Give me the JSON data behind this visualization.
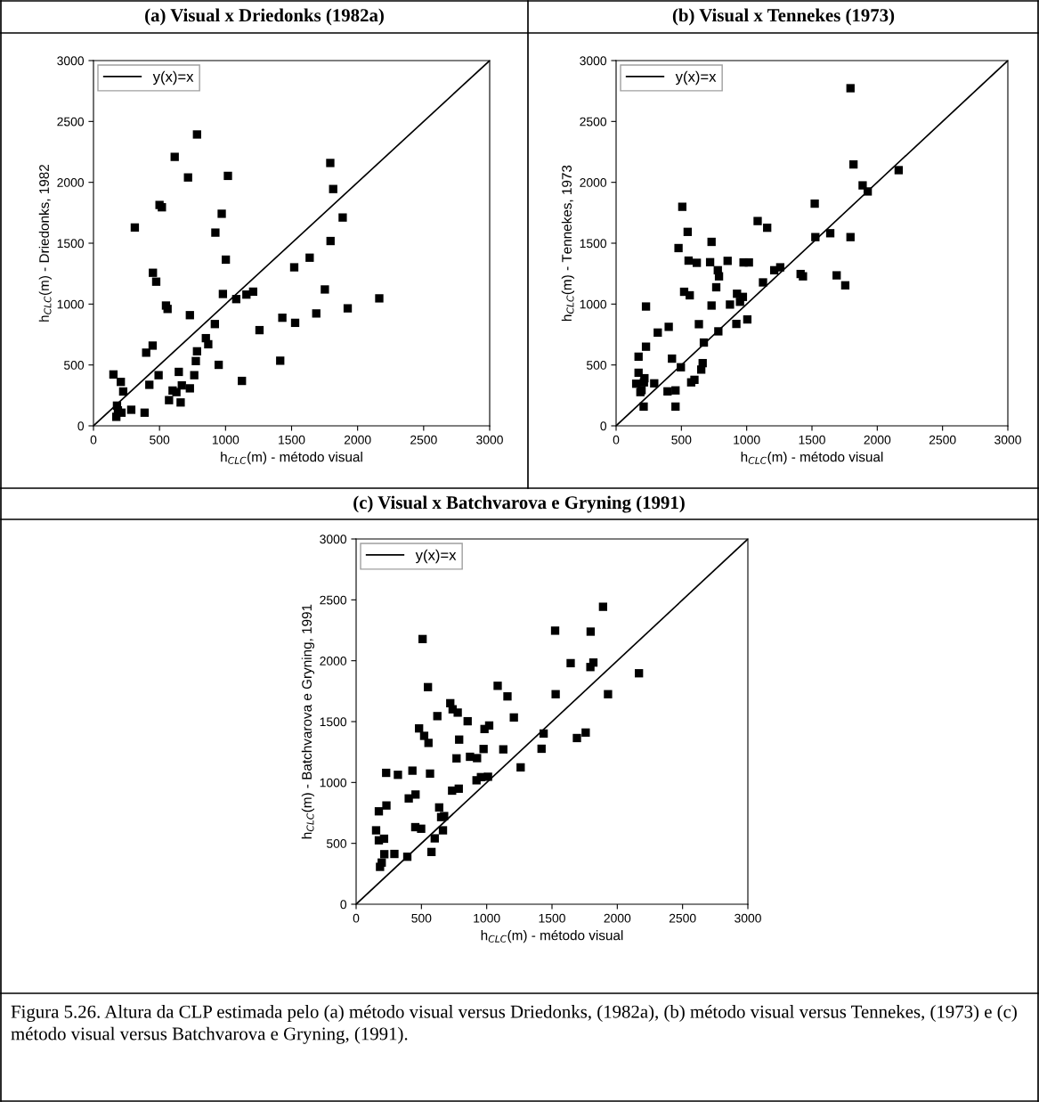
{
  "chart_data": [
    {
      "type": "scatter",
      "title": "(a) Visual x Driedonks (1982a)",
      "xlabel": "h$_{CLC}$(m) - método visual",
      "ylabel": "h$_{CLC}$(m) - Driedonks, 1982",
      "xlim": [
        0,
        3000
      ],
      "ylim": [
        0,
        3000
      ],
      "xticks": [
        0,
        500,
        1000,
        1500,
        2000,
        2500,
        3000
      ],
      "yticks": [
        0,
        500,
        1000,
        1500,
        2000,
        2500,
        3000
      ],
      "grid": false,
      "legend": "top left",
      "series": [
        {
          "name": "y(x)=x",
          "type": "line",
          "color": "#000000",
          "marker": "none",
          "line_style": "solid",
          "x": [
            0,
            3000
          ],
          "values": [
            0,
            3000
          ]
        },
        {
          "color": "#000000",
          "marker": "square",
          "x": [
            151,
            207,
            225,
            178,
            185,
            212,
            173,
            286,
            387,
            313,
            399,
            448,
            423,
            493,
            450,
            475,
            500,
            518,
            549,
            561,
            572,
            599,
            628,
            646,
            660,
            669,
            615,
            716,
            730,
            730,
            763,
            775,
            784,
            784,
            851,
            869,
            919,
            923,
            948,
            971,
            980,
            1002,
            1018,
            1081,
            1124,
            1158,
            1209,
            1257,
            1414,
            1430,
            1520,
            1527,
            1637,
            1687,
            1752,
            1793,
            1795,
            1815,
            1887,
            1925,
            2164
          ],
          "values": [
            422,
            361,
            282,
            166,
            127,
            108,
            74,
            132,
            108,
            1629,
            601,
            659,
            337,
            416,
            1257,
            1184,
            1814,
            1795,
            988,
            960,
            211,
            290,
            277,
            443,
            192,
            332,
            2209,
            2040,
            909,
            308,
            416,
            532,
            612,
            2393,
            720,
            670,
            836,
            1587,
            501,
            1742,
            1083,
            1365,
            2053,
            1041,
            369,
            1078,
            1102,
            786,
            535,
            888,
            1302,
            846,
            1381,
            923,
            1120,
            2159,
            1518,
            1945,
            1711,
            965,
            1047
          ]
        }
      ]
    },
    {
      "type": "scatter",
      "title": "(b) Visual x Tennekes (1973)",
      "xlabel": "h$_{CLC}$(m) - método visual",
      "ylabel": "h$_{CLC}$(m) - Tennekes, 1973",
      "xlim": [
        0,
        3000
      ],
      "ylim": [
        0,
        3000
      ],
      "xticks": [
        0,
        500,
        1000,
        1500,
        2000,
        2500,
        3000
      ],
      "yticks": [
        0,
        500,
        1000,
        1500,
        2000,
        2500,
        3000
      ],
      "grid": false,
      "legend": "top left",
      "series": [
        {
          "name": "y(x)=x",
          "type": "line",
          "color": "#000000",
          "marker": "none",
          "line_style": "solid",
          "x": [
            0,
            3000
          ],
          "values": [
            0,
            3000
          ]
        },
        {
          "color": "#000000",
          "marker": "square",
          "x": [
            1795,
            1818,
            2164,
            1888,
            1927,
            1521,
            1526,
            1640,
            1795,
            1689,
            1755,
            1413,
            1431,
            1084,
            1157,
            1211,
            1257,
            1125,
            976,
            1017,
            854,
            720,
            731,
            779,
            788,
            767,
            555,
            618,
            478,
            507,
            548,
            521,
            564,
            731,
            872,
            926,
            971,
            949,
            921,
            1005,
            783,
            672,
            634,
            663,
            652,
            600,
            575,
            496,
            428,
            455,
            455,
            394,
            403,
            319,
            292,
            229,
            229,
            172,
            172,
            154,
            217,
            213,
            186,
            195,
            211
          ],
          "values": [
            2773,
            2147,
            2100,
            1975,
            1925,
            1825,
            1550,
            1582,
            1550,
            1236,
            1154,
            1247,
            1228,
            1682,
            1627,
            1278,
            1302,
            1178,
            1342,
            1342,
            1355,
            1344,
            1511,
            1278,
            1228,
            1138,
            1357,
            1339,
            1460,
            1799,
            1593,
            1101,
            1072,
            988,
            996,
            1085,
            1059,
            1019,
            837,
            874,
            776,
            684,
            835,
            515,
            462,
            378,
            357,
            481,
            552,
            291,
            158,
            283,
            813,
            766,
            349,
            980,
            650,
            568,
            436,
            346,
            391,
            357,
            277,
            293,
            158
          ]
        }
      ]
    },
    {
      "type": "scatter",
      "title": "(c) Visual x Batchvarova e Gryning (1991)",
      "xlabel": "h$_{CLC}$(m) - método visual",
      "ylabel": "h$_{CLC}$(m) - Batchvarova e Gryning, 1991",
      "xlim": [
        0,
        3000
      ],
      "ylim": [
        0,
        3000
      ],
      "xticks": [
        0,
        500,
        1000,
        1500,
        2000,
        2500,
        3000
      ],
      "yticks": [
        0,
        500,
        1000,
        1500,
        2000,
        2500,
        3000
      ],
      "grid": false,
      "legend": "top left",
      "annotations": [
        "Figura 5.26. Altura da CLP estimada pelo (a) método visual versus Driedonks, (1982a), (b) método visual versus Tennekes, (1973) e (c) método visual versus Batchvarova e Gryning, (1991)."
      ],
      "series": [
        {
          "name": "y(x)=x",
          "type": "line",
          "color": "#000000",
          "marker": "none",
          "line_style": "solid",
          "x": [
            0,
            3000
          ],
          "values": [
            0,
            3000
          ]
        },
        {
          "color": "#000000",
          "marker": "square",
          "x": [
            1891,
            1524,
            1796,
            509,
            1643,
            1817,
            1794,
            2166,
            550,
            1084,
            1159,
            1528,
            1929,
            1208,
            622,
            721,
            739,
            778,
            854,
            983,
            1019,
            482,
            521,
            554,
            789,
            1436,
            1691,
            1758,
            976,
            1127,
            1420,
            769,
            872,
            926,
            1260,
            230,
            320,
            431,
            566,
            922,
            956,
            1010,
            735,
            786,
            403,
            455,
            174,
            232,
            636,
            651,
            674,
            665,
            453,
            498,
            153,
            174,
            214,
            602,
            216,
            293,
            392,
            577,
            196,
            183
          ],
          "values": [
            2443,
            2247,
            2239,
            2178,
            1980,
            1985,
            1948,
            1897,
            1783,
            1794,
            1707,
            1725,
            1725,
            1534,
            1545,
            1651,
            1601,
            1574,
            1503,
            1439,
            1468,
            1444,
            1383,
            1325,
            1352,
            1402,
            1365,
            1410,
            1275,
            1272,
            1277,
            1198,
            1211,
            1200,
            1124,
            1079,
            1063,
            1097,
            1073,
            1018,
            1044,
            1047,
            933,
            949,
            869,
            901,
            763,
            811,
            795,
            716,
            724,
            607,
            633,
            620,
            607,
            525,
            538,
            541,
            411,
            413,
            390,
            429,
            342,
            307
          ]
        }
      ]
    }
  ]
}
